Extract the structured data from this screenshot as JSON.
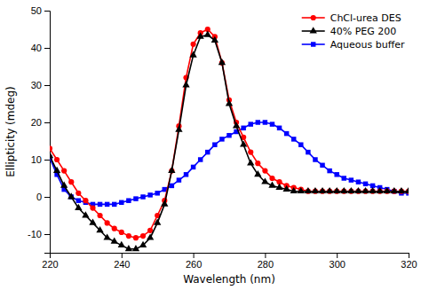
{
  "chart_data": {
    "type": "line",
    "xlabel": "Wavelength (nm)",
    "ylabel": "Ellipticity (mdeg)",
    "x": [
      220,
      222,
      224,
      226,
      228,
      230,
      232,
      234,
      236,
      238,
      240,
      242,
      244,
      246,
      248,
      250,
      252,
      254,
      256,
      258,
      260,
      262,
      264,
      266,
      268,
      270,
      272,
      274,
      276,
      278,
      280,
      282,
      284,
      286,
      288,
      290,
      292,
      294,
      296,
      298,
      300,
      302,
      304,
      306,
      308,
      310,
      312,
      314,
      316,
      318,
      320
    ],
    "series": [
      {
        "name": "ChCl-urea DES",
        "color": "#FF0000",
        "marker": "circle",
        "values": [
          13,
          10,
          7,
          4,
          1,
          -1,
          -3,
          -5,
          -7,
          -8.5,
          -9.5,
          -10.5,
          -11,
          -10.5,
          -9,
          -5,
          -1,
          7,
          19,
          32,
          41,
          44,
          45,
          43,
          36,
          26,
          20,
          16,
          12,
          9,
          7,
          5,
          4,
          3,
          2.5,
          2,
          1.5,
          1.5,
          1.5,
          1.5,
          1.5,
          1.5,
          1.5,
          1.5,
          1.5,
          1.5,
          1.5,
          1.5,
          1.5,
          1.5,
          1.5
        ]
      },
      {
        "name": "40% PEG 200",
        "color": "#000000",
        "marker": "triangle",
        "values": [
          11,
          7,
          3,
          0,
          -3,
          -5,
          -7,
          -9,
          -11,
          -12,
          -13,
          -14,
          -14,
          -13,
          -11,
          -7,
          -2,
          7,
          18,
          30,
          38,
          43,
          43.5,
          42,
          36,
          25,
          19,
          14,
          9,
          6,
          4,
          3,
          2.5,
          2,
          1.5,
          1.5,
          1.5,
          1.5,
          1.5,
          1.5,
          1.5,
          1.5,
          1.5,
          1.5,
          1.5,
          1.5,
          1.5,
          1.5,
          1.5,
          1.5,
          1.5
        ]
      },
      {
        "name": "Aqueous buffer",
        "color": "#0000FF",
        "marker": "square",
        "values": [
          10.5,
          6,
          2,
          0,
          -1,
          -1.5,
          -2,
          -2,
          -2,
          -2,
          -1.5,
          -1,
          -0.5,
          0,
          0.5,
          1,
          2,
          3,
          4.5,
          6,
          8,
          10,
          12,
          14,
          15.5,
          16.5,
          17.5,
          18.5,
          19.5,
          20,
          20,
          19.5,
          18.5,
          17,
          15.5,
          14,
          12,
          10,
          8.5,
          7,
          6,
          5,
          4.5,
          4,
          3.5,
          3,
          2.5,
          2,
          1.5,
          1,
          1
        ]
      }
    ],
    "xlim": [
      220,
      320
    ],
    "ylim": [
      -15,
      50
    ],
    "xticks": [
      220,
      240,
      260,
      280,
      300,
      320
    ],
    "yticks": [
      -10,
      0,
      10,
      20,
      30,
      40,
      50
    ],
    "legend": "upper right"
  }
}
